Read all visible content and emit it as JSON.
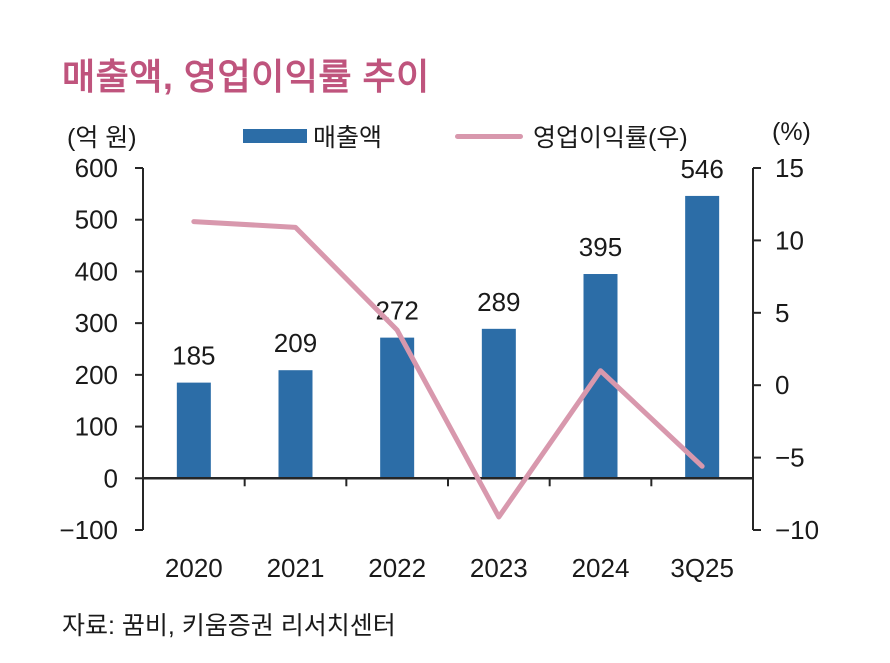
{
  "title": "매출액, 영업이익률 추이",
  "legend": {
    "left_unit": "(억 원)",
    "series1": "매출액",
    "series2": "영업이익률(우)",
    "right_unit": "(%)"
  },
  "source": "자료: 꿈비, 키움증권 리서치센터",
  "colors": {
    "bar": "#2c6da7",
    "line": "#d898ad",
    "title": "#bf547d",
    "axis": "#262626",
    "text": "#1a1a1a"
  },
  "chart_data": {
    "type": "bar",
    "title": "매출액, 영업이익률 추이",
    "categories": [
      "2020",
      "2021",
      "2022",
      "2023",
      "2024",
      "3Q25"
    ],
    "series": [
      {
        "name": "매출액",
        "type": "bar",
        "axis": "left",
        "values": [
          185,
          209,
          272,
          289,
          395,
          546
        ]
      },
      {
        "name": "영업이익률(우)",
        "type": "line",
        "axis": "right",
        "values": [
          11.3,
          10.9,
          3.8,
          -9.1,
          1.0,
          -5.6
        ]
      }
    ],
    "bar_value_labels": [
      "185",
      "209",
      "272",
      "289",
      "395",
      "546"
    ],
    "left_axis": {
      "label": "(억 원)",
      "min": -100,
      "max": 600,
      "step": 100,
      "ticks": [
        600,
        500,
        400,
        300,
        200,
        100,
        0,
        -100
      ]
    },
    "right_axis": {
      "label": "(%)",
      "min": -10,
      "max": 15,
      "step": 5,
      "ticks": [
        15,
        10,
        5,
        0,
        -5,
        -10
      ]
    },
    "grid": false,
    "legend_position": "top"
  }
}
